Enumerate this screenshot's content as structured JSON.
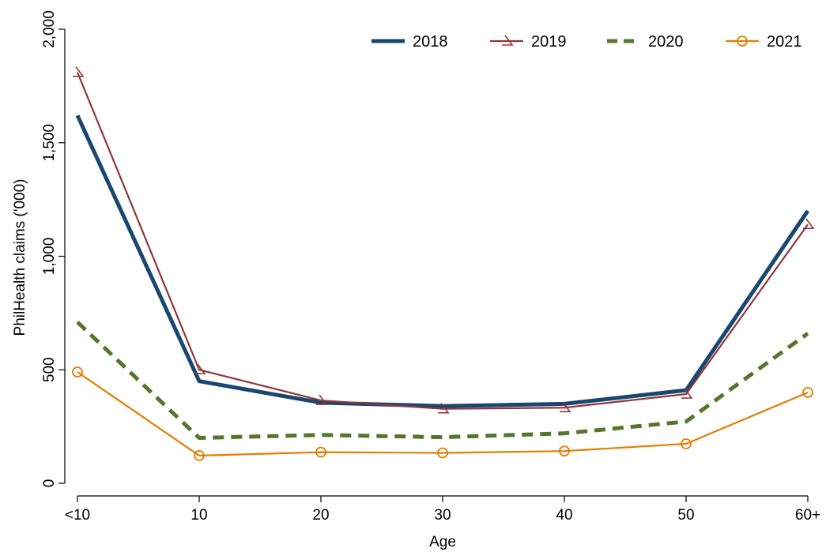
{
  "chart_data": {
    "type": "line",
    "title": "",
    "xlabel": "Age",
    "ylabel": "PhilHealth claims ('000)",
    "categories": [
      "<10",
      "10",
      "20",
      "30",
      "40",
      "50",
      "60+"
    ],
    "yticks": [
      0,
      500,
      1000,
      1500,
      2000
    ],
    "ytick_labels": [
      "0",
      "500",
      "1,000",
      "1,500",
      "2,000"
    ],
    "ylim": [
      0,
      2000
    ],
    "grid": false,
    "legend_position": "top-right",
    "series": [
      {
        "name": "2018",
        "color": "#1a476f",
        "style": "solid-thick",
        "marker": "none",
        "values": [
          1620,
          450,
          355,
          340,
          350,
          410,
          1200
        ]
      },
      {
        "name": "2019",
        "color": "#90353b",
        "style": "solid",
        "marker": "triangle",
        "values": [
          1810,
          500,
          365,
          328,
          333,
          393,
          1140
        ]
      },
      {
        "name": "2020",
        "color": "#55752f",
        "style": "dashed-thick",
        "marker": "none",
        "values": [
          710,
          200,
          213,
          203,
          220,
          272,
          660
        ]
      },
      {
        "name": "2021",
        "color": "#e37e00",
        "style": "solid",
        "marker": "circle",
        "values": [
          490,
          122,
          137,
          134,
          142,
          174,
          400
        ]
      }
    ]
  }
}
